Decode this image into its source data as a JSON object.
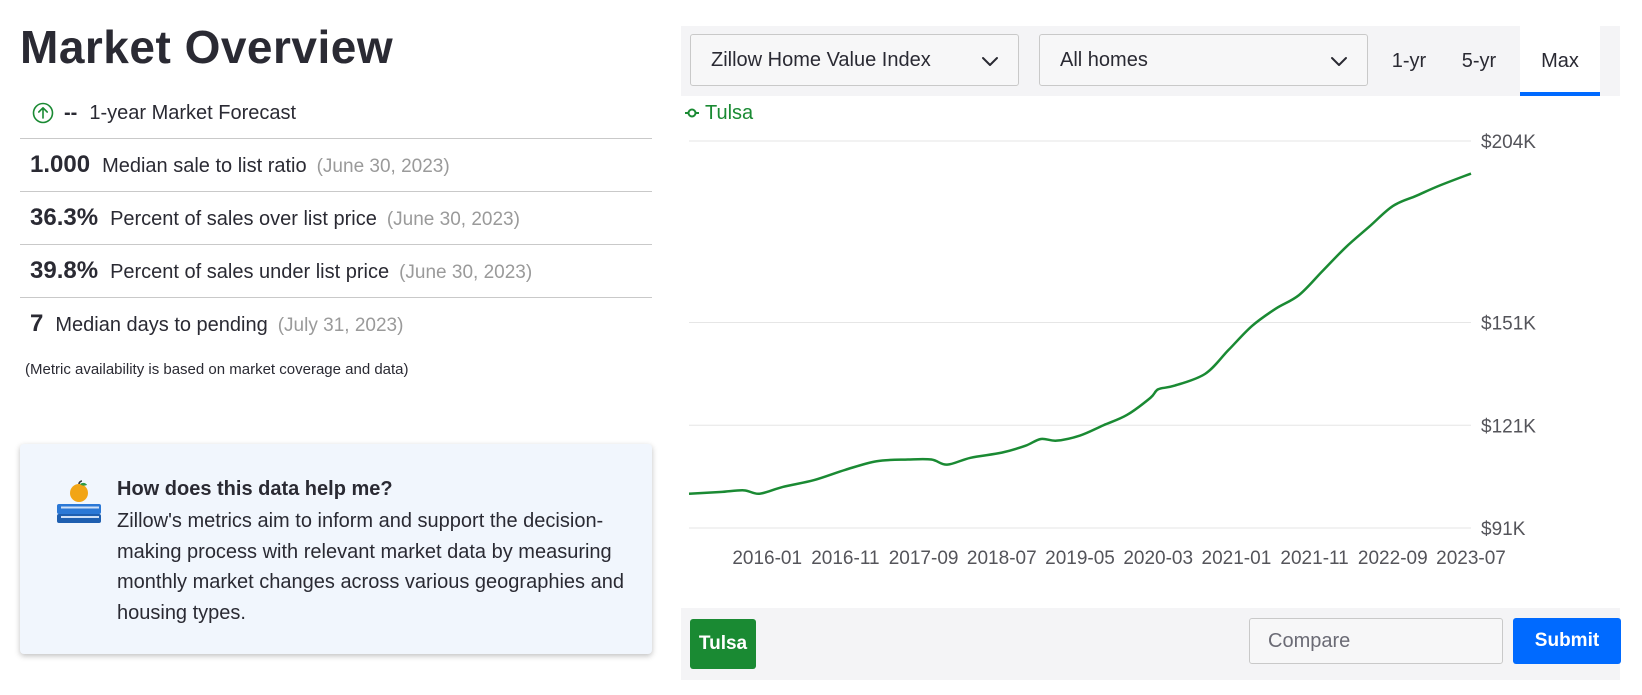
{
  "page": {
    "title": "Market Overview",
    "forecast": {
      "value": "--",
      "label": "1-year Market Forecast"
    },
    "metrics": [
      {
        "value": "1.000",
        "label": "Median sale to list ratio",
        "date": "(June 30, 2023)"
      },
      {
        "value": "36.3%",
        "label": "Percent of sales over list price",
        "date": "(June 30, 2023)"
      },
      {
        "value": "39.8%",
        "label": "Percent of sales under list price",
        "date": "(June 30, 2023)"
      },
      {
        "value": "7",
        "label": "Median days to pending",
        "date": "(July 31, 2023)"
      }
    ],
    "note": "(Metric availability is based on market coverage and data)"
  },
  "help": {
    "title": "How does this data help me?",
    "body": "Zillow's metrics aim to inform and support the decision-making process with relevant market data by measuring monthly market changes across various geographies and housing types."
  },
  "controls": {
    "index_select": "Zillow Home Value Index",
    "home_type_select": "All homes",
    "ranges": [
      "1-yr",
      "5-yr",
      "Max"
    ],
    "active_range": "Max",
    "chip": "Tulsa",
    "compare_placeholder": "Compare",
    "submit": "Submit"
  },
  "colors": {
    "series": "#1a8a33",
    "accent": "#006aff"
  },
  "chart_data": {
    "type": "line",
    "legend": "top-left",
    "grid": true,
    "y_ticks": [
      91000,
      121000,
      151000,
      204000
    ],
    "y_tick_labels": [
      "$91K",
      "$121K",
      "$151K",
      "$204K"
    ],
    "x_tick_labels": [
      "2016-01",
      "2016-11",
      "2017-09",
      "2018-07",
      "2019-05",
      "2020-03",
      "2021-01",
      "2021-11",
      "2022-09",
      "2023-07"
    ],
    "x_range": [
      "2015-03",
      "2023-07"
    ],
    "ylim": [
      91000,
      204000
    ],
    "series": [
      {
        "name": "Tulsa",
        "x": [
          "2015-03",
          "2015-07",
          "2015-10",
          "2015-12",
          "2016-03",
          "2016-07",
          "2016-11",
          "2017-03",
          "2017-07",
          "2017-10",
          "2017-12",
          "2018-03",
          "2018-07",
          "2018-10",
          "2018-12",
          "2019-02",
          "2019-05",
          "2019-08",
          "2019-11",
          "2020-02",
          "2020-03",
          "2020-05",
          "2020-09",
          "2020-12",
          "2021-03",
          "2021-06",
          "2021-09",
          "2021-12",
          "2022-03",
          "2022-06",
          "2022-09",
          "2022-12",
          "2023-03",
          "2023-07"
        ],
        "values": [
          101000,
          101500,
          102000,
          101000,
          103000,
          105000,
          108000,
          110500,
          111000,
          111000,
          109500,
          111500,
          113000,
          115000,
          117000,
          116500,
          118000,
          121000,
          124000,
          129000,
          131500,
          132500,
          136000,
          143000,
          150000,
          155000,
          159000,
          166000,
          173000,
          179000,
          185000,
          188000,
          191000,
          194500
        ]
      }
    ]
  }
}
